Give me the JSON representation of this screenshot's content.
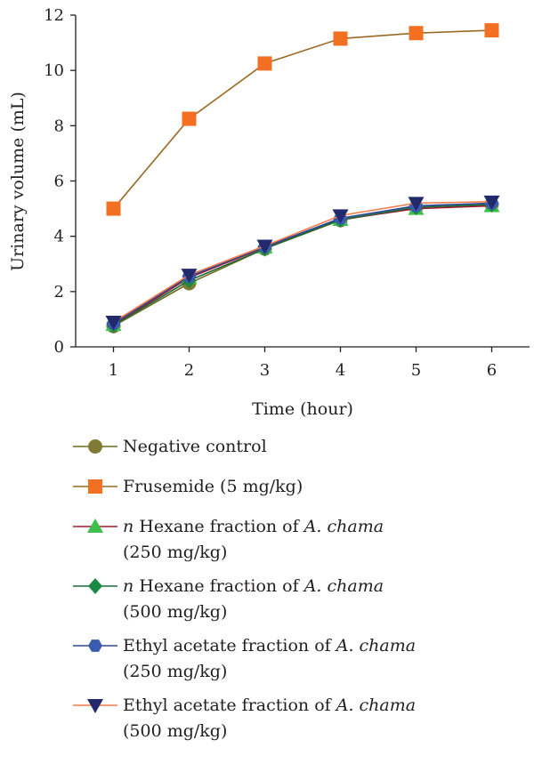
{
  "chart_data": {
    "type": "line",
    "xlabel": "Time (hour)",
    "ylabel": "Urinary volume (mL)",
    "x": [
      1,
      2,
      3,
      4,
      5,
      6
    ],
    "xlim": [
      0.5,
      6.5
    ],
    "ylim": [
      0,
      12
    ],
    "xticks": [
      "1",
      "2",
      "3",
      "4",
      "5",
      "6"
    ],
    "yticks": [
      "0",
      "2",
      "4",
      "6",
      "8",
      "10",
      "12"
    ],
    "grid": false,
    "legend_position": "bottom",
    "series": [
      {
        "name": "Negative control",
        "values": [
          0.75,
          2.3,
          3.55,
          4.58,
          5.05,
          5.15
        ],
        "line_color": "#6f6a1f",
        "marker_color": "#807a33",
        "marker": "circle"
      },
      {
        "name": "Frusemide (5 mg/kg)",
        "values": [
          5.0,
          8.25,
          10.25,
          11.15,
          11.35,
          11.45
        ],
        "line_color": "#9a6a24",
        "marker_color": "#f36f21",
        "marker": "square"
      },
      {
        "name": "n Hexane fraction of A. chama (250 mg/kg)",
        "values": [
          0.8,
          2.5,
          3.6,
          4.6,
          5.0,
          5.1
        ],
        "line_color": "#9e1b32",
        "marker_color": "#3cc04a",
        "marker": "triangle-up"
      },
      {
        "name": "n Hexane fraction of A. chama (500 mg/kg)",
        "values": [
          0.78,
          2.4,
          3.55,
          4.6,
          5.05,
          5.15
        ],
        "line_color": "#1a6b3a",
        "marker_color": "#1a8a43",
        "marker": "diamond"
      },
      {
        "name": "Ethyl acetate fraction of A. chama (250 mg/kg)",
        "values": [
          0.85,
          2.55,
          3.62,
          4.65,
          5.1,
          5.2
        ],
        "line_color": "#2b4a9a",
        "marker_color": "#3b5bb0",
        "marker": "hexagon"
      },
      {
        "name": "Ethyl acetate fraction of A. chama (500 mg/kg)",
        "values": [
          0.9,
          2.6,
          3.65,
          4.75,
          5.2,
          5.25
        ],
        "line_color": "#f37a4a",
        "marker_color": "#232a6b",
        "marker": "triangle-down"
      }
    ]
  },
  "legend": {
    "items": [
      {
        "parts": [
          {
            "t": "Negative control",
            "i": false
          }
        ],
        "line2": ""
      },
      {
        "parts": [
          {
            "t": "Frusemide (5 mg/kg)",
            "i": false
          }
        ],
        "line2": ""
      },
      {
        "parts": [
          {
            "t": "n",
            "i": true
          },
          {
            "t": " Hexane fraction of ",
            "i": false
          },
          {
            "t": "A. chama",
            "i": true
          }
        ],
        "line2": "(250 mg/kg)"
      },
      {
        "parts": [
          {
            "t": "n",
            "i": true
          },
          {
            "t": " Hexane fraction of ",
            "i": false
          },
          {
            "t": "A. chama",
            "i": true
          }
        ],
        "line2": "(500 mg/kg)"
      },
      {
        "parts": [
          {
            "t": "Ethyl acetate fraction of ",
            "i": false
          },
          {
            "t": "A. chama",
            "i": true
          }
        ],
        "line2": "(250 mg/kg)"
      },
      {
        "parts": [
          {
            "t": "Ethyl acetate fraction of ",
            "i": false
          },
          {
            "t": "A. chama",
            "i": true
          }
        ],
        "line2": "(500 mg/kg)"
      }
    ]
  }
}
